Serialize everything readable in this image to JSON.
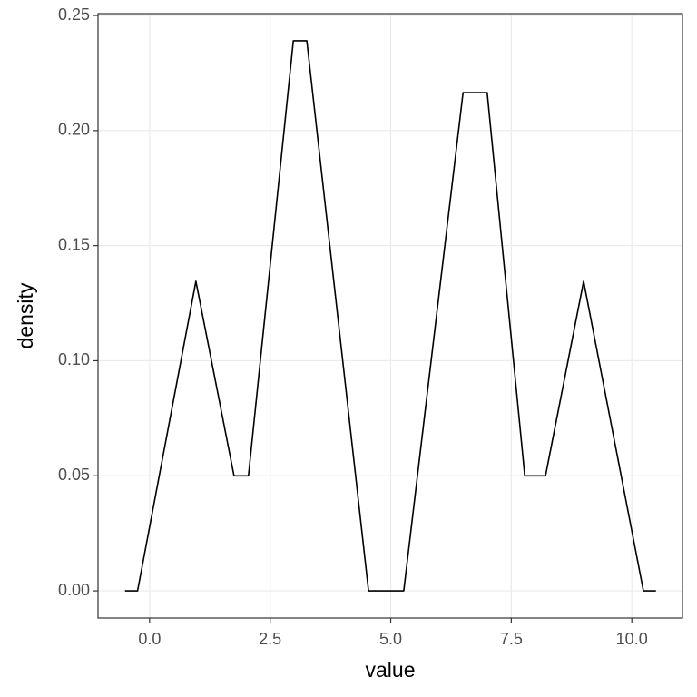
{
  "chart_data": {
    "type": "line",
    "x_label": "value",
    "y_label": "density",
    "x": [
      -0.51,
      -0.25,
      0.96,
      1.75,
      2.05,
      2.98,
      3.26,
      4.54,
      5.27,
      6.5,
      7.0,
      7.78,
      8.21,
      9.0,
      10.24,
      10.5
    ],
    "series": [
      {
        "color": "#000000",
        "values": [
          0,
          0,
          0.1345,
          0.05,
          0.05,
          0.239,
          0.239,
          0,
          0,
          0.2165,
          0.2165,
          0.05,
          0.05,
          0.1345,
          0,
          0
        ]
      }
    ],
    "xlim": [
      -1.07,
      11.05
    ],
    "ylim": [
      -0.0118,
      0.2508
    ],
    "xticks": [
      {
        "value": 0,
        "label": "0.0"
      },
      2.5,
      {
        "value": 5,
        "label": "5.0"
      },
      7.5,
      {
        "value": 10,
        "label": "10.0"
      }
    ],
    "yticks": [
      {
        "value": 0,
        "label": "0.00"
      },
      {
        "value": 0.05,
        "label": "0.05"
      },
      {
        "value": 0.1,
        "label": "0.10"
      },
      {
        "value": 0.15,
        "label": "0.15"
      },
      {
        "value": 0.2,
        "label": "0.20"
      },
      {
        "value": 0.25,
        "label": "0.25"
      }
    ],
    "grid": true
  }
}
